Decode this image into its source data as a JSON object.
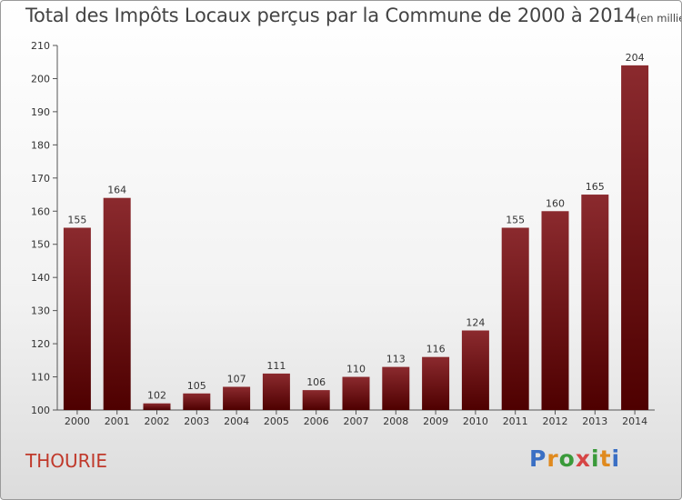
{
  "chart_data": {
    "type": "bar",
    "title": "Total des Impôts Locaux perçus par la Commune de 2000 à 2014",
    "unit": "(en milliers d'€)",
    "categories": [
      "2000",
      "2001",
      "2002",
      "2003",
      "2004",
      "2005",
      "2006",
      "2007",
      "2008",
      "2009",
      "2010",
      "2011",
      "2012",
      "2013",
      "2014"
    ],
    "values": [
      155,
      164,
      102,
      105,
      107,
      111,
      106,
      110,
      113,
      116,
      124,
      155,
      160,
      165,
      204
    ],
    "ylim": [
      100,
      210
    ],
    "yticks": [
      100,
      110,
      120,
      130,
      140,
      150,
      160,
      170,
      180,
      190,
      200,
      210
    ],
    "bar_color_top": "#8b2a2e",
    "bar_color_bottom": "#4e0000",
    "grid": false,
    "data_labels": true
  },
  "commune": "THOURIE",
  "logo": {
    "letters": [
      "P",
      "r",
      "o",
      "x",
      "i",
      "t",
      "i"
    ],
    "colors": [
      "#3a6fc4",
      "#e08a1e",
      "#3a9a3a",
      "#d64545",
      "#3a9a3a",
      "#e08a1e",
      "#3a6fc4"
    ]
  }
}
